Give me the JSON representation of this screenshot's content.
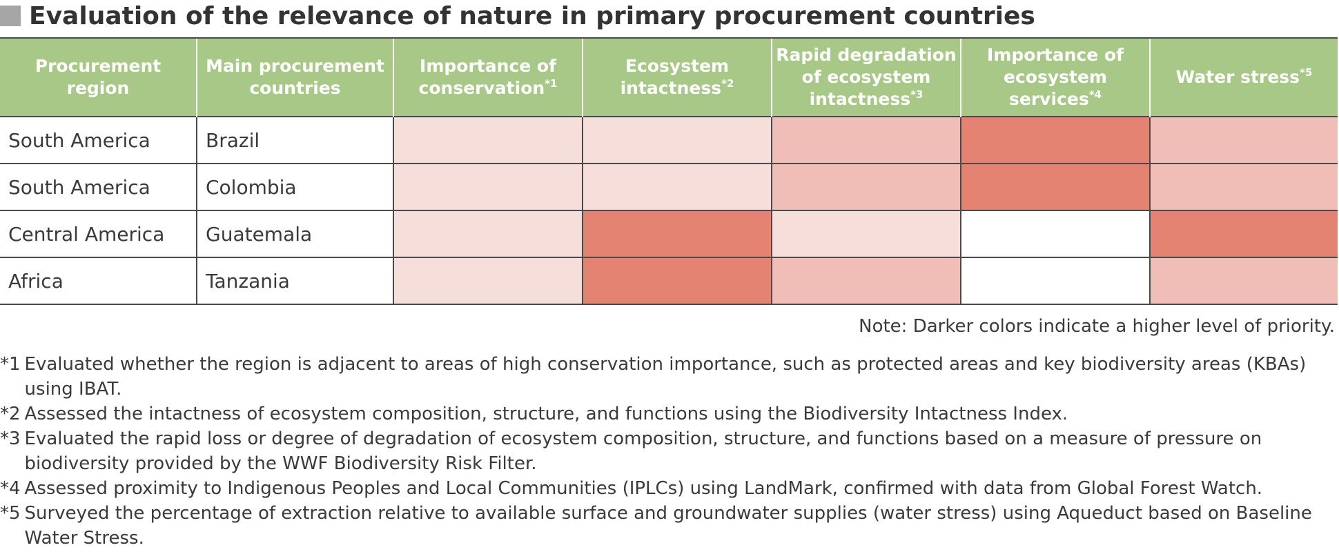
{
  "title": "Evaluation of the relevance of nature in primary procurement countries",
  "level_colors": {
    "none": "#ffffff",
    "low": "#f6dfdb",
    "medium": "#f1beb7",
    "high": "#e58373"
  },
  "header_color": "#a8c887",
  "columns": [
    {
      "label": "Procurement region",
      "sup": ""
    },
    {
      "label": "Main procurement countries",
      "sup": ""
    },
    {
      "label": "Importance of conservation",
      "sup": "*1"
    },
    {
      "label": "Ecosystem intactness",
      "sup": "*2"
    },
    {
      "label": "Rapid degradation of ecosystem intactness",
      "sup": "*3"
    },
    {
      "label": "Importance of ecosystem services",
      "sup": "*4"
    },
    {
      "label": "Water stress",
      "sup": "*5"
    }
  ],
  "rows": [
    {
      "region": "South America",
      "country": "Brazil",
      "levels": [
        "low",
        "low",
        "medium",
        "high",
        "medium"
      ]
    },
    {
      "region": "South America",
      "country": "Colombia",
      "levels": [
        "low",
        "low",
        "medium",
        "high",
        "medium"
      ]
    },
    {
      "region": "Central America",
      "country": "Guatemala",
      "levels": [
        "low",
        "high",
        "low",
        "none",
        "high"
      ]
    },
    {
      "region": "Africa",
      "country": "Tanzania",
      "levels": [
        "low",
        "high",
        "medium",
        "none",
        "medium"
      ]
    }
  ],
  "note": "Note: Darker colors indicate a higher level of priority.",
  "footnotes": [
    {
      "mark": "*1",
      "text": "Evaluated whether the region is adjacent to areas of high conservation importance, such as protected areas and key biodiversity areas (KBAs) using IBAT."
    },
    {
      "mark": "*2",
      "text": "Assessed the intactness of ecosystem composition, structure, and functions using the Biodiversity Intactness Index."
    },
    {
      "mark": "*3",
      "text": "Evaluated the rapid loss or degree of degradation of ecosystem composition, structure, and functions based on a measure of pressure on biodiversity provided by the WWF Biodiversity Risk Filter."
    },
    {
      "mark": "*4",
      "text": "Assessed proximity to Indigenous Peoples and Local Communities (IPLCs) using LandMark, confirmed with data from Global Forest Watch."
    },
    {
      "mark": "*5",
      "text": "Surveyed the percentage of extraction relative to available surface and groundwater supplies (water stress) using Aqueduct based on Baseline Water Stress."
    }
  ]
}
